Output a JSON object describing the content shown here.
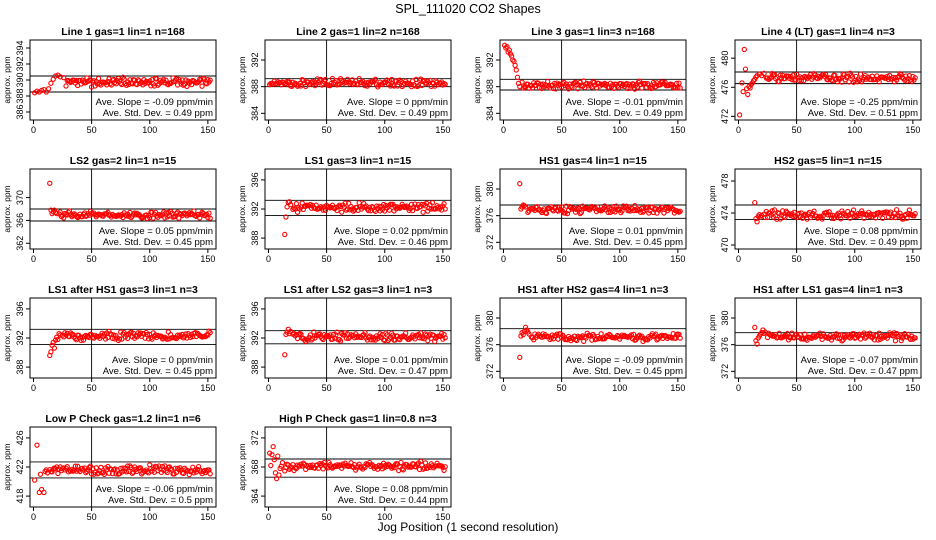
{
  "title": "SPL_111020  CO2 Shapes",
  "xlabel": "Jog Position (1 second resolution)",
  "colors": {
    "points": "#ff0000",
    "frame": "#000000"
  },
  "chart_data": [
    {
      "type": "scatter",
      "title": "Line 1 gas=1 lin=1 n=168",
      "ylabel": "approx. ppm",
      "xlim": [
        -3,
        157
      ],
      "ylim": [
        385,
        395
      ],
      "xticks": [
        0,
        50,
        100,
        150
      ],
      "yticks": [
        386,
        388,
        390,
        392,
        394
      ],
      "hlines": [
        390.5,
        388.5
      ],
      "vline": 50,
      "slope": "Ave. Slope = -0.09  ppm/min",
      "std": "Ave. Std. Dev. = 0.49  ppm",
      "points": [
        [
          1,
          388.4
        ],
        [
          3,
          388.6
        ],
        [
          5,
          388.5
        ],
        [
          7,
          388.7
        ],
        [
          9,
          388.8
        ],
        [
          11,
          388.5
        ],
        [
          13,
          388.9
        ],
        [
          15,
          389.6
        ],
        [
          17,
          390.1
        ],
        [
          19,
          390.5
        ],
        [
          21,
          390.6
        ],
        [
          23,
          390.4
        ],
        [
          26,
          390.3
        ]
      ],
      "base": 389.7,
      "xstart": 28,
      "xend": 152
    },
    {
      "type": "scatter",
      "title": "Line 2 gas=1 lin=2 n=168",
      "ylabel": "approx. ppm",
      "xlim": [
        -3,
        157
      ],
      "ylim": [
        383,
        395
      ],
      "xticks": [
        0,
        50,
        100,
        150
      ],
      "yticks": [
        384,
        388,
        392
      ],
      "hlines": [
        389.2,
        388.0
      ],
      "vline": 50,
      "slope": "Ave. Slope = 0  ppm/min",
      "std": "Ave. Std. Dev. = 0.49  ppm",
      "points": [],
      "base": 388.6,
      "xstart": 1,
      "xend": 152
    },
    {
      "type": "scatter",
      "title": "Line 3 gas=1 lin=3 n=168",
      "ylabel": "approx. ppm",
      "xlim": [
        -3,
        157
      ],
      "ylim": [
        383,
        395
      ],
      "xticks": [
        0,
        50,
        100,
        150
      ],
      "yticks": [
        384,
        388,
        392
      ],
      "hlines": [
        389.1,
        387.5
      ],
      "vline": 50,
      "slope": "Ave. Slope = -0.01  ppm/min",
      "std": "Ave. Std. Dev. = 0.49  ppm",
      "points": [
        [
          1,
          394.2
        ],
        [
          2,
          393.8
        ],
        [
          3,
          394.0
        ],
        [
          4,
          393.2
        ],
        [
          5,
          393.5
        ],
        [
          6,
          392.9
        ],
        [
          7,
          392.6
        ],
        [
          8,
          392.0
        ],
        [
          9,
          391.8
        ],
        [
          10,
          391.2
        ],
        [
          11,
          390.5
        ],
        [
          12,
          389.4
        ],
        [
          13,
          388.5
        ],
        [
          14,
          388.0
        ]
      ],
      "base": 388.2,
      "xstart": 16,
      "xend": 152
    },
    {
      "type": "scatter",
      "title": "Line 4 (LT) gas=1 lin=4 n=3",
      "ylabel": "approx. ppm",
      "xlim": [
        -3,
        157
      ],
      "ylim": [
        471.5,
        482.5
      ],
      "xticks": [
        0,
        50,
        100,
        150
      ],
      "yticks": [
        472,
        476,
        480
      ],
      "hlines": [
        478.1,
        476.5
      ],
      "vline": 50,
      "slope": "Ave. Slope = -0.25  ppm/min",
      "std": "Ave. Std. Dev. = 0.51  ppm",
      "points": [
        [
          1,
          472.2
        ],
        [
          3,
          476.6
        ],
        [
          4,
          475.4
        ],
        [
          5,
          481.2
        ],
        [
          6,
          478.5
        ],
        [
          7,
          475.8
        ],
        [
          8,
          475.0
        ],
        [
          9,
          476.1
        ],
        [
          10,
          475.9
        ],
        [
          11,
          476.4
        ],
        [
          12,
          476.6
        ],
        [
          13,
          476.9
        ],
        [
          14,
          477.1
        ],
        [
          15,
          477.4
        ],
        [
          16,
          477.6
        ],
        [
          18,
          477.8
        ],
        [
          20,
          477.6
        ],
        [
          22,
          477.9
        ]
      ],
      "base": 477.3,
      "xstart": 24,
      "xend": 152
    },
    {
      "type": "scatter",
      "title": "LS2 gas=2 lin=1 n=15",
      "ylabel": "approx. ppm",
      "xlim": [
        -3,
        157
      ],
      "ylim": [
        361,
        375
      ],
      "xticks": [
        0,
        50,
        100,
        150
      ],
      "yticks": [
        362,
        366,
        370
      ],
      "hlines": [
        368.0,
        365.9
      ],
      "vline": 50,
      "slope": "Ave. Slope = 0.05  ppm/min",
      "std": "Ave. Std. Dev. = 0.45  ppm",
      "points": [
        [
          14,
          372.5
        ],
        [
          15,
          367.8
        ],
        [
          16,
          367.2
        ],
        [
          17,
          367.5
        ],
        [
          18,
          367.8
        ],
        [
          19,
          367.4
        ],
        [
          20,
          367.2
        ]
      ],
      "base": 367.0,
      "xstart": 22,
      "xend": 152
    },
    {
      "type": "scatter",
      "title": "LS1 gas=3 lin=1 n=15",
      "ylabel": "approx. ppm",
      "xlim": [
        -3,
        157
      ],
      "ylim": [
        386.5,
        397.5
      ],
      "xticks": [
        0,
        50,
        100,
        150
      ],
      "yticks": [
        388,
        392,
        396
      ],
      "hlines": [
        393.2,
        391.1
      ],
      "vline": 50,
      "slope": "Ave. Slope = 0.02  ppm/min",
      "std": "Ave. Std. Dev. = 0.46  ppm",
      "points": [
        [
          14,
          388.5
        ],
        [
          15,
          390.9
        ],
        [
          16,
          392.3
        ],
        [
          17,
          392.9
        ],
        [
          18,
          393.0
        ],
        [
          19,
          392.6
        ]
      ],
      "base": 392.2,
      "xstart": 21,
      "xend": 152
    },
    {
      "type": "scatter",
      "title": "HS1 gas=4 lin=1 n=15",
      "ylabel": "approx. ppm",
      "xlim": [
        -3,
        157
      ],
      "ylim": [
        371,
        383
      ],
      "xticks": [
        0,
        50,
        100,
        150
      ],
      "yticks": [
        372,
        376,
        380
      ],
      "hlines": [
        377.6,
        375.6
      ],
      "vline": 50,
      "slope": "Ave. Slope = 0.01  ppm/min",
      "std": "Ave. Std. Dev. = 0.45  ppm",
      "points": [
        [
          14,
          380.8
        ],
        [
          15,
          377.0
        ],
        [
          16,
          377.3
        ],
        [
          17,
          377.6
        ],
        [
          18,
          377.5
        ],
        [
          19,
          377.3
        ]
      ],
      "base": 376.9,
      "xstart": 21,
      "xend": 152
    },
    {
      "type": "scatter",
      "title": "HS2 gas=5 lin=1 n=15",
      "ylabel": "approx. ppm",
      "xlim": [
        -3,
        157
      ],
      "ylim": [
        469.5,
        479.5
      ],
      "xticks": [
        0,
        50,
        100,
        150
      ],
      "yticks": [
        470,
        474,
        478
      ],
      "hlines": [
        475.0,
        473.2
      ],
      "vline": 50,
      "slope": "Ave. Slope = 0.08  ppm/min",
      "std": "Ave. Std. Dev. = 0.49  ppm",
      "points": [
        [
          14,
          475.3
        ],
        [
          15,
          473.3
        ],
        [
          16,
          472.9
        ],
        [
          17,
          473.6
        ],
        [
          18,
          473.8
        ],
        [
          19,
          473.5
        ],
        [
          20,
          473.7
        ]
      ],
      "base": 473.8,
      "xstart": 22,
      "xend": 152
    },
    {
      "type": "scatter",
      "title": "LS1 after HS1 gas=3 lin=1 n=3",
      "ylabel": "approx. ppm",
      "xlim": [
        -3,
        157
      ],
      "ylim": [
        386.5,
        397.5
      ],
      "xticks": [
        0,
        50,
        100,
        150
      ],
      "yticks": [
        388,
        392,
        396
      ],
      "hlines": [
        393.2,
        391.1
      ],
      "vline": 50,
      "slope": "Ave. Slope = 0  ppm/min",
      "std": "Ave. Std. Dev. = 0.45  ppm",
      "points": [
        [
          14,
          389.6
        ],
        [
          15,
          390.1
        ],
        [
          16,
          391.0
        ],
        [
          17,
          391.4
        ],
        [
          18,
          390.6
        ],
        [
          19,
          391.7
        ],
        [
          20,
          392.1
        ],
        [
          21,
          391.8
        ],
        [
          22,
          392.6
        ],
        [
          23,
          392.4
        ]
      ],
      "base": 392.3,
      "xstart": 25,
      "xend": 152
    },
    {
      "type": "scatter",
      "title": "LS1 after LS2 gas=3 lin=1 n=3",
      "ylabel": "approx. ppm",
      "xlim": [
        -3,
        157
      ],
      "ylim": [
        386.5,
        397.5
      ],
      "xticks": [
        0,
        50,
        100,
        150
      ],
      "yticks": [
        388,
        392,
        396
      ],
      "hlines": [
        393.0,
        391.2
      ],
      "vline": 50,
      "slope": "Ave. Slope = 0.01  ppm/min",
      "std": "Ave. Std. Dev. = 0.47  ppm",
      "points": [
        [
          14,
          389.7
        ],
        [
          15,
          392.5
        ],
        [
          16,
          392.8
        ],
        [
          17,
          393.2
        ],
        [
          18,
          392.6
        ],
        [
          19,
          392.9
        ]
      ],
      "base": 392.2,
      "xstart": 21,
      "xend": 152
    },
    {
      "type": "scatter",
      "title": "HS1 after HS2 gas=4 lin=1 n=3",
      "ylabel": "approx. ppm",
      "xlim": [
        -3,
        157
      ],
      "ylim": [
        371,
        383
      ],
      "xticks": [
        0,
        50,
        100,
        150
      ],
      "yticks": [
        372,
        376,
        380
      ],
      "hlines": [
        378.4,
        375.8
      ],
      "vline": 50,
      "slope": "Ave. Slope = -0.09  ppm/min",
      "std": "Ave. Std. Dev. = 0.45  ppm",
      "points": [
        [
          14,
          374.1
        ],
        [
          15,
          377.3
        ],
        [
          16,
          377.8
        ],
        [
          17,
          377.5
        ],
        [
          18,
          378.0
        ],
        [
          19,
          378.6
        ],
        [
          20,
          378.2
        ],
        [
          21,
          377.9
        ],
        [
          22,
          377.6
        ]
      ],
      "base": 377.1,
      "xstart": 24,
      "xend": 152
    },
    {
      "type": "scatter",
      "title": "HS1 after LS1 gas=4 lin=1 n=3",
      "ylabel": "approx. ppm",
      "xlim": [
        -3,
        157
      ],
      "ylim": [
        371,
        383
      ],
      "xticks": [
        0,
        50,
        100,
        150
      ],
      "yticks": [
        372,
        376,
        380
      ],
      "hlines": [
        377.8,
        375.9
      ],
      "vline": 50,
      "slope": "Ave. Slope = -0.07  ppm/min",
      "std": "Ave. Std. Dev. = 0.47  ppm",
      "points": [
        [
          14,
          378.6
        ],
        [
          15,
          376.6
        ],
        [
          16,
          376.1
        ],
        [
          17,
          377.0
        ],
        [
          18,
          377.3
        ],
        [
          19,
          377.6
        ],
        [
          20,
          377.8
        ],
        [
          21,
          378.2
        ],
        [
          22,
          377.7
        ],
        [
          23,
          377.9
        ]
      ],
      "base": 377.2,
      "xstart": 25,
      "xend": 152
    },
    {
      "type": "scatter",
      "title": "Low P Check gas=1.2 lin=1 n=6",
      "ylabel": "approx. ppm",
      "xlim": [
        -3,
        157
      ],
      "ylim": [
        416.5,
        427.5
      ],
      "xticks": [
        0,
        50,
        100,
        150
      ],
      "yticks": [
        418,
        422,
        426
      ],
      "hlines": [
        422.7,
        420.5
      ],
      "vline": 50,
      "slope": "Ave. Slope = -0.06  ppm/min",
      "std": "Ave. Std. Dev. = 0.5  ppm",
      "points": [
        [
          1,
          420.2
        ],
        [
          3,
          425.0
        ],
        [
          5,
          418.5
        ],
        [
          6,
          421.0
        ],
        [
          7,
          418.9
        ],
        [
          9,
          418.5
        ],
        [
          10,
          421.4
        ],
        [
          11,
          421.6
        ],
        [
          12,
          421.2
        ]
      ],
      "base": 421.6,
      "xstart": 14,
      "xend": 152
    },
    {
      "type": "scatter",
      "title": "High P Check gas=1 lin=0.8 n=3",
      "ylabel": "approx. ppm",
      "xlim": [
        -3,
        157
      ],
      "ylim": [
        362.5,
        373.5
      ],
      "xticks": [
        0,
        50,
        100,
        150
      ],
      "yticks": [
        364,
        368,
        372
      ],
      "hlines": [
        369.1,
        366.6
      ],
      "vline": 50,
      "slope": "Ave. Slope = 0.08  ppm/min",
      "std": "Ave. Std. Dev. = 0.44  ppm",
      "points": [
        [
          1,
          369.9
        ],
        [
          2,
          368.2
        ],
        [
          3,
          369.7
        ],
        [
          4,
          370.8
        ],
        [
          5,
          369.0
        ],
        [
          6,
          367.2
        ],
        [
          7,
          366.4
        ],
        [
          8,
          369.5
        ],
        [
          9,
          366.9
        ],
        [
          10,
          367.8
        ],
        [
          11,
          368.1
        ],
        [
          12,
          368.6
        ]
      ],
      "base": 368.1,
      "xstart": 14,
      "xend": 152
    }
  ]
}
